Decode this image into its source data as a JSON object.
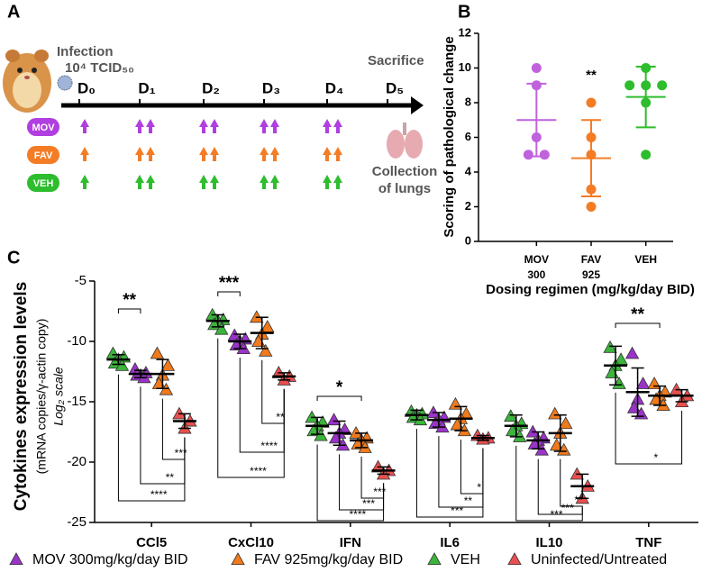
{
  "diagram": {
    "panel_a": "A",
    "panel_b": "B",
    "panel_c": "C",
    "infection": "Infection",
    "dose": "10⁴ TCID₅₀",
    "sacrifice": "Sacrifice",
    "days": [
      "D₀",
      "D₁",
      "D₂",
      "D₃",
      "D₄",
      "D₅"
    ],
    "groups": [
      "MOV",
      "FAV",
      "VEH"
    ],
    "collection": [
      "Collection",
      "of lungs"
    ]
  },
  "chart_data": [
    {
      "type": "dot",
      "ylabel": "Scoring of pathological change",
      "xlabel": "Dosing regimen (mg/kg/day BID)",
      "categories": [
        [
          "MOV",
          "300"
        ],
        [
          "FAV",
          "925"
        ],
        [
          "VEH"
        ]
      ],
      "colors": [
        "#c162dd",
        "#f47c25",
        "#2dbd2d"
      ],
      "points": [
        [
          10,
          9,
          6,
          5,
          5
        ],
        [
          8,
          6,
          5,
          3,
          2
        ],
        [
          10,
          9,
          9,
          9,
          8,
          5
        ]
      ],
      "means": [
        7,
        4.8,
        8.33
      ],
      "sd": [
        2.1,
        2.2,
        1.75
      ],
      "annotations": [
        null,
        "**",
        null
      ],
      "ylim": [
        0,
        12
      ],
      "yticks": [
        0,
        2,
        4,
        6,
        8,
        10,
        12
      ]
    },
    {
      "type": "grouped-dot",
      "ylabel": "Cytokines expression levels",
      "ylabel2": "(mRNA copies/γ-actin copy)",
      "ylabel3": "Log₂ scale",
      "categories": [
        "CCl5",
        "CxCl10",
        "IFN",
        "IL6",
        "IL10",
        "TNF"
      ],
      "ylim": [
        -25,
        -5
      ],
      "yticks": [
        -5,
        -10,
        -15,
        -20,
        -25
      ],
      "series": [
        {
          "name": "MOV 300mg/kg/day BID",
          "color": "#9a34c9",
          "points": [
            [
              -12.3,
              -12.6,
              -12.8,
              -12.8,
              -13.0
            ],
            [
              -9.5,
              -9.8,
              -10.0,
              -10.3,
              -10.6
            ],
            [
              -16.5,
              -17.3,
              -17.6,
              -18.0,
              -18.6
            ],
            [
              -15.9,
              -16.3,
              -16.5,
              -16.8,
              -17.1
            ],
            [
              -17.5,
              -18.0,
              -18.2,
              -18.5,
              -19.0
            ],
            [
              -11.0,
              -13.5,
              -14.8,
              -15.5,
              -16.0
            ]
          ],
          "means": [
            -12.7,
            -10.0,
            -17.6,
            -16.5,
            -18.2,
            -14.2
          ],
          "sd": [
            0.3,
            0.6,
            1.0,
            0.6,
            0.7,
            2.0
          ]
        },
        {
          "name": "FAV 925mg/kg/day BID",
          "color": "#f07a1c",
          "points": [
            [
              -11.0,
              -12.0,
              -12.8,
              -13.5,
              -14.0
            ],
            [
              -8.0,
              -8.8,
              -9.4,
              -10.0,
              -10.8
            ],
            [
              -17.6,
              -18.0,
              -18.2,
              -18.5,
              -18.8
            ],
            [
              -15.2,
              -16.0,
              -16.4,
              -16.9,
              -17.4
            ],
            [
              -16.0,
              -16.8,
              -17.6,
              -18.6,
              -19.0
            ],
            [
              -13.5,
              -14.2,
              -14.5,
              -14.8,
              -15.3
            ]
          ],
          "means": [
            -12.7,
            -9.3,
            -18.2,
            -16.4,
            -17.6,
            -14.5
          ],
          "sd": [
            1.2,
            1.3,
            0.6,
            1.0,
            1.5,
            0.8
          ]
        },
        {
          "name": "VEH",
          "color": "#3cb43c",
          "points": [
            [
              -11.0,
              -11.3,
              -11.5,
              -11.8,
              -12.0
            ],
            [
              -7.8,
              -8.2,
              -8.3,
              -8.6,
              -9.0
            ],
            [
              -16.3,
              -16.7,
              -17.0,
              -17.4,
              -17.8
            ],
            [
              -15.8,
              -16.0,
              -16.1,
              -16.3,
              -16.5
            ],
            [
              -16.2,
              -16.8,
              -17.0,
              -17.4,
              -17.9
            ],
            [
              -10.5,
              -11.5,
              -12.0,
              -12.6,
              -13.5
            ]
          ],
          "means": [
            -11.5,
            -8.3,
            -17.0,
            -16.1,
            -17.0,
            -12.0
          ],
          "sd": [
            0.4,
            0.5,
            0.7,
            0.4,
            0.9,
            1.6
          ]
        },
        {
          "name": "Uninfected/Untreated",
          "color": "#e8504f",
          "points": [
            [
              -16.0,
              -16.6,
              -17.2
            ],
            [
              -12.6,
              -12.9,
              -13.2
            ],
            [
              -20.4,
              -20.7,
              -21.0
            ],
            [
              -17.8,
              -18.0,
              -18.1
            ],
            [
              -21.0,
              -22.0,
              -23.0
            ],
            [
              -14.0,
              -14.5,
              -15.0
            ]
          ],
          "means": [
            -16.6,
            -12.9,
            -20.7,
            -18.0,
            -22.0,
            -14.5
          ],
          "sd": [
            0.6,
            0.3,
            0.3,
            0.2,
            1.0,
            0.5
          ]
        }
      ],
      "significance": [
        "**",
        "***",
        "**",
        "****",
        "***",
        "**",
        "****",
        "****",
        "*",
        "***",
        "***",
        "****",
        "*",
        "**",
        "***",
        "**",
        "***",
        "***",
        "**",
        "*"
      ]
    }
  ]
}
